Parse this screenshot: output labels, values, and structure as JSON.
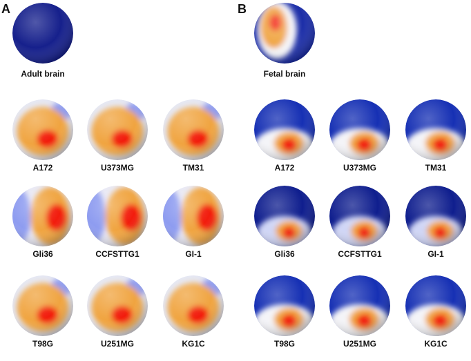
{
  "panels": [
    {
      "letter": "A",
      "top": "Adult brain",
      "cells": [
        "A172",
        "U373MG",
        "TM31",
        "Gli36",
        "CCFSTTG1",
        "GI-1",
        "T98G",
        "U251MG",
        "KG1C"
      ]
    },
    {
      "letter": "B",
      "top": "Fetal brain",
      "cells": [
        "A172",
        "U373MG",
        "TM31",
        "Gli36",
        "CCFSTTG1",
        "GI-1",
        "T98G",
        "U251MG",
        "KG1C"
      ]
    }
  ]
}
